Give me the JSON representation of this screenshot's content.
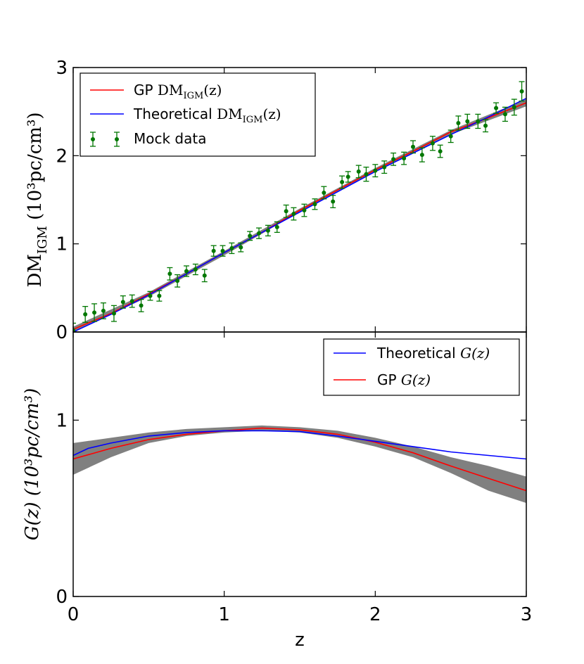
{
  "chart_data": [
    {
      "type": "line",
      "panel": "top",
      "xlim": [
        0,
        3
      ],
      "ylim": [
        0,
        3
      ],
      "xticks": [
        "0",
        "1",
        "2",
        "3"
      ],
      "yticks": [
        "0",
        "1",
        "2",
        "3"
      ],
      "ylabel": "DM",
      "ylabel_sub": "IGM",
      "ylabel_unit": "(10³pc/cm³)",
      "legend_position": "top-left",
      "legend": [
        {
          "prefix": "GP ",
          "math": "DM",
          "sub": "IGM",
          "suffix": "(z)",
          "color": "#ff0000"
        },
        {
          "prefix": "Theoretical ",
          "math": "DM",
          "sub": "IGM",
          "suffix": "(z)",
          "color": "#0000ff"
        },
        {
          "prefix": "Mock data",
          "math": "",
          "sub": "",
          "suffix": "",
          "color": "#007700"
        }
      ],
      "series": [
        {
          "kind": "band",
          "color": "#808080",
          "x": [
            0,
            0.5,
            1,
            1.5,
            2,
            2.5,
            3
          ],
          "lower": [
            0.0,
            0.4,
            0.87,
            1.36,
            1.82,
            2.24,
            2.56
          ],
          "upper": [
            0.06,
            0.45,
            0.92,
            1.4,
            1.86,
            2.29,
            2.64
          ]
        },
        {
          "kind": "line",
          "color": "#ff0000",
          "x": [
            0,
            0.25,
            0.5,
            0.75,
            1,
            1.25,
            1.5,
            1.75,
            2,
            2.25,
            2.5,
            2.75,
            3
          ],
          "y": [
            0.03,
            0.21,
            0.43,
            0.66,
            0.9,
            1.13,
            1.38,
            1.61,
            1.84,
            2.05,
            2.27,
            2.43,
            2.6
          ]
        },
        {
          "kind": "line",
          "color": "#0000ff",
          "x": [
            0,
            0.25,
            0.5,
            0.75,
            1,
            1.25,
            1.5,
            1.75,
            2,
            2.25,
            2.5,
            2.75,
            3
          ],
          "y": [
            0.0,
            0.2,
            0.42,
            0.66,
            0.9,
            1.13,
            1.36,
            1.59,
            1.82,
            2.03,
            2.24,
            2.44,
            2.65
          ]
        },
        {
          "kind": "errorbar",
          "color": "#007700",
          "x": [
            0.0,
            0.08,
            0.14,
            0.2,
            0.27,
            0.33,
            0.39,
            0.45,
            0.51,
            0.57,
            0.64,
            0.69,
            0.75,
            0.81,
            0.87,
            0.93,
            0.99,
            1.05,
            1.11,
            1.17,
            1.23,
            1.29,
            1.35,
            1.41,
            1.46,
            1.53,
            1.6,
            1.66,
            1.72,
            1.78,
            1.82,
            1.89,
            1.94,
            2.0,
            2.06,
            2.12,
            2.19,
            2.25,
            2.31,
            2.38,
            2.43,
            2.5,
            2.55,
            2.61,
            2.68,
            2.73,
            2.8,
            2.86,
            2.92,
            2.97
          ],
          "y": [
            0.02,
            0.2,
            0.22,
            0.24,
            0.21,
            0.34,
            0.35,
            0.3,
            0.41,
            0.41,
            0.66,
            0.58,
            0.69,
            0.71,
            0.64,
            0.92,
            0.92,
            0.95,
            0.96,
            1.09,
            1.12,
            1.15,
            1.19,
            1.37,
            1.34,
            1.38,
            1.45,
            1.58,
            1.48,
            1.7,
            1.76,
            1.82,
            1.79,
            1.83,
            1.87,
            1.96,
            1.97,
            2.1,
            2.01,
            2.14,
            2.05,
            2.22,
            2.37,
            2.39,
            2.39,
            2.34,
            2.54,
            2.47,
            2.55,
            2.73
          ],
          "err": [
            0.08,
            0.09,
            0.1,
            0.09,
            0.09,
            0.07,
            0.07,
            0.07,
            0.05,
            0.06,
            0.07,
            0.07,
            0.06,
            0.06,
            0.07,
            0.06,
            0.06,
            0.06,
            0.05,
            0.05,
            0.06,
            0.06,
            0.06,
            0.07,
            0.07,
            0.07,
            0.06,
            0.07,
            0.07,
            0.07,
            0.06,
            0.07,
            0.08,
            0.07,
            0.07,
            0.07,
            0.07,
            0.07,
            0.08,
            0.08,
            0.07,
            0.07,
            0.08,
            0.08,
            0.08,
            0.07,
            0.06,
            0.08,
            0.09,
            0.11
          ]
        }
      ]
    },
    {
      "type": "line",
      "panel": "bottom",
      "xlim": [
        0,
        3
      ],
      "ylim": [
        0,
        1.5
      ],
      "xticks": [
        "0",
        "1",
        "2",
        "3"
      ],
      "yticks": [
        "0",
        "1"
      ],
      "xlabel": "z",
      "ylabel": "G(z) (10³pc/cm³)",
      "legend_position": "top-right",
      "legend": [
        {
          "prefix": "Theoretical ",
          "math": "G(z)",
          "color": "#0000ff"
        },
        {
          "prefix": "GP ",
          "math": "G(z)",
          "color": "#ff0000"
        }
      ],
      "series": [
        {
          "kind": "band",
          "color": "#808080",
          "x": [
            0,
            0.25,
            0.5,
            0.75,
            1,
            1.25,
            1.5,
            1.75,
            2,
            2.25,
            2.5,
            2.75,
            3
          ],
          "lower": [
            0.69,
            0.79,
            0.87,
            0.91,
            0.93,
            0.94,
            0.93,
            0.9,
            0.85,
            0.79,
            0.7,
            0.6,
            0.53
          ],
          "upper": [
            0.87,
            0.9,
            0.93,
            0.95,
            0.96,
            0.97,
            0.96,
            0.94,
            0.9,
            0.85,
            0.79,
            0.74,
            0.68
          ]
        },
        {
          "kind": "line",
          "color": "#ff0000",
          "x": [
            0,
            0.25,
            0.5,
            0.75,
            1,
            1.25,
            1.5,
            1.75,
            2,
            2.25,
            2.5,
            2.75,
            3
          ],
          "y": [
            0.78,
            0.84,
            0.89,
            0.92,
            0.94,
            0.955,
            0.945,
            0.92,
            0.875,
            0.815,
            0.74,
            0.67,
            0.6
          ]
        },
        {
          "kind": "line",
          "color": "#0000ff",
          "x": [
            0,
            0.1,
            0.25,
            0.5,
            0.75,
            1,
            1.25,
            1.5,
            1.75,
            2,
            2.25,
            2.5,
            2.75,
            3
          ],
          "y": [
            0.8,
            0.84,
            0.87,
            0.91,
            0.93,
            0.94,
            0.94,
            0.935,
            0.91,
            0.88,
            0.85,
            0.82,
            0.8,
            0.78
          ]
        }
      ]
    }
  ]
}
